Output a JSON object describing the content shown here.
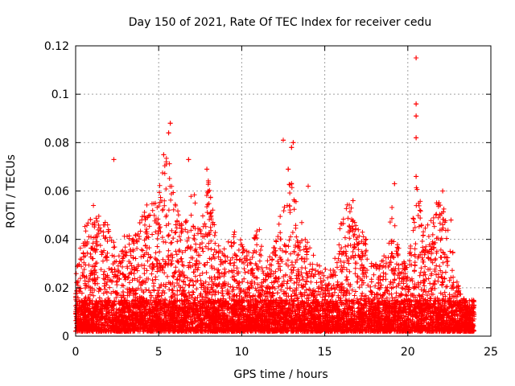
{
  "chart_data": {
    "type": "scatter",
    "title": "Day 150 of 2021, Rate Of TEC Index for receiver cedu",
    "xlabel": "GPS time / hours",
    "ylabel": "ROTI / TECUs",
    "xlim": [
      0,
      25
    ],
    "ylim": [
      0,
      0.12
    ],
    "xticks": [
      0,
      5,
      10,
      15,
      20,
      25
    ],
    "xtick_labels": [
      "0",
      "5",
      "10",
      "15",
      "20",
      "25"
    ],
    "yticks": [
      0,
      0.02,
      0.04,
      0.06,
      0.08,
      0.1,
      0.12
    ],
    "ytick_labels": [
      "0",
      "0.02",
      "0.04",
      "0.06",
      "0.08",
      "0.1",
      "0.12"
    ],
    "grid": true,
    "marker": "+",
    "color": "#ff0000",
    "series": [
      {
        "name": "ROTI",
        "notable_points": [
          {
            "x": 2.3,
            "y": 0.073
          },
          {
            "x": 5.7,
            "y": 0.088
          },
          {
            "x": 5.6,
            "y": 0.084
          },
          {
            "x": 5.3,
            "y": 0.075
          },
          {
            "x": 6.8,
            "y": 0.073
          },
          {
            "x": 7.9,
            "y": 0.069
          },
          {
            "x": 12.5,
            "y": 0.081
          },
          {
            "x": 13.1,
            "y": 0.08
          },
          {
            "x": 13.0,
            "y": 0.078
          },
          {
            "x": 12.8,
            "y": 0.069
          },
          {
            "x": 14.0,
            "y": 0.062
          },
          {
            "x": 16.7,
            "y": 0.056
          },
          {
            "x": 19.2,
            "y": 0.063
          },
          {
            "x": 20.5,
            "y": 0.115
          },
          {
            "x": 20.5,
            "y": 0.096
          },
          {
            "x": 20.5,
            "y": 0.091
          },
          {
            "x": 20.5,
            "y": 0.082
          },
          {
            "x": 20.5,
            "y": 0.066
          },
          {
            "x": 22.1,
            "y": 0.06
          },
          {
            "x": 22.6,
            "y": 0.048
          }
        ],
        "envelope": {
          "x": [
            0,
            0.5,
            1,
            1.5,
            2,
            2.5,
            3,
            3.5,
            4,
            4.5,
            5,
            5.5,
            6,
            6.5,
            7,
            7.5,
            8,
            8.5,
            9,
            9.5,
            10,
            10.5,
            11,
            11.5,
            12,
            12.5,
            13,
            13.5,
            14,
            14.5,
            15,
            15.5,
            16,
            16.5,
            17,
            17.5,
            18,
            18.5,
            19,
            19.5,
            20,
            20.5,
            21,
            21.5,
            22,
            22.5,
            23,
            23.5,
            24
          ],
          "y_max": [
            0.026,
            0.046,
            0.055,
            0.05,
            0.049,
            0.034,
            0.043,
            0.042,
            0.052,
            0.056,
            0.06,
            0.08,
            0.055,
            0.045,
            0.062,
            0.05,
            0.065,
            0.04,
            0.036,
            0.045,
            0.04,
            0.035,
            0.047,
            0.03,
            0.042,
            0.058,
            0.065,
            0.05,
            0.04,
            0.03,
            0.03,
            0.028,
            0.05,
            0.056,
            0.05,
            0.04,
            0.03,
            0.032,
            0.056,
            0.035,
            0.028,
            0.063,
            0.05,
            0.052,
            0.059,
            0.045,
            0.022,
            0.014,
            0.012
          ]
        }
      }
    ]
  }
}
